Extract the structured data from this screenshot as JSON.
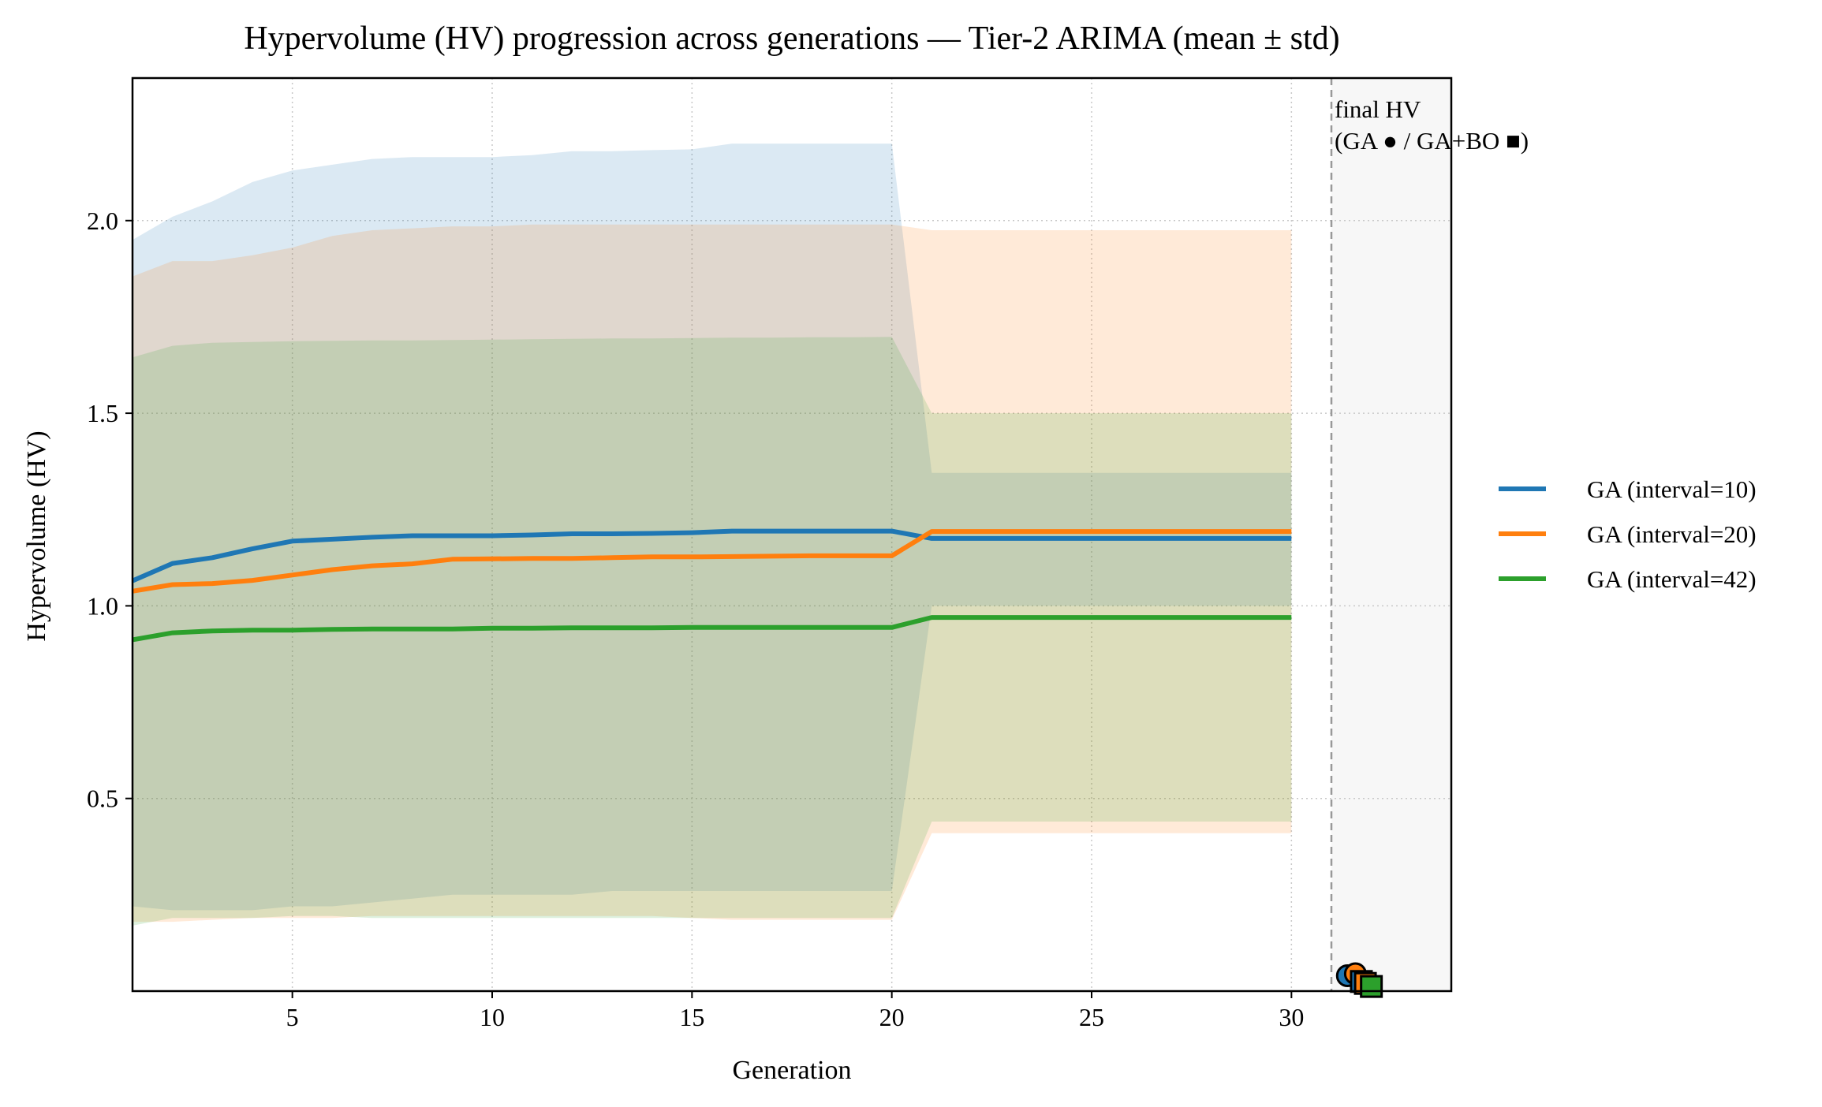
{
  "chart_data": {
    "type": "line",
    "title": "Hypervolume (HV) progression across generations — Tier-2 ARIMA (mean ± std)",
    "xlabel": "Generation",
    "ylabel": "Hypervolume (HV)",
    "xlim": [
      1,
      34
    ],
    "ylim": [
      0.0,
      2.37
    ],
    "xticks": [
      5,
      10,
      15,
      20,
      25,
      30
    ],
    "yticks": [
      0.5,
      1.0,
      1.5,
      2.0
    ],
    "xtick_labels": [
      "5",
      "10",
      "15",
      "20",
      "25",
      "30"
    ],
    "ytick_labels": [
      "0.5",
      "1.0",
      "1.5",
      "2.0"
    ],
    "grid": true,
    "legend_position": "right, outside plot",
    "x": [
      1,
      2,
      3,
      4,
      5,
      6,
      7,
      8,
      9,
      10,
      11,
      12,
      13,
      14,
      15,
      16,
      17,
      18,
      19,
      20,
      21,
      22,
      23,
      24,
      25,
      26,
      27,
      28,
      29,
      30
    ],
    "series": [
      {
        "name": "GA (interval=10)",
        "color": "#1f77b4",
        "mean": [
          1.065,
          1.11,
          1.125,
          1.148,
          1.168,
          1.173,
          1.178,
          1.182,
          1.182,
          1.182,
          1.184,
          1.187,
          1.187,
          1.188,
          1.19,
          1.194,
          1.194,
          1.194,
          1.194,
          1.194,
          1.175,
          1.175,
          1.175,
          1.175,
          1.175,
          1.175,
          1.175,
          1.175,
          1.175,
          1.175
        ],
        "upper": [
          1.95,
          2.01,
          2.05,
          2.1,
          2.13,
          2.145,
          2.16,
          2.165,
          2.165,
          2.165,
          2.17,
          2.18,
          2.18,
          2.183,
          2.185,
          2.2,
          2.2,
          2.2,
          2.2,
          2.2,
          1.345,
          1.345,
          1.345,
          1.345,
          1.345,
          1.345,
          1.345,
          1.345,
          1.345,
          1.345
        ],
        "lower": [
          0.22,
          0.21,
          0.21,
          0.21,
          0.22,
          0.22,
          0.23,
          0.24,
          0.25,
          0.25,
          0.25,
          0.25,
          0.26,
          0.26,
          0.26,
          0.26,
          0.26,
          0.26,
          0.26,
          0.26,
          1.0,
          1.0,
          1.0,
          1.0,
          1.0,
          1.0,
          1.0,
          1.0,
          1.0,
          1.0
        ]
      },
      {
        "name": "GA (interval=20)",
        "color": "#ff7f0e",
        "mean": [
          1.038,
          1.055,
          1.058,
          1.066,
          1.08,
          1.094,
          1.104,
          1.109,
          1.121,
          1.122,
          1.123,
          1.123,
          1.125,
          1.127,
          1.127,
          1.128,
          1.129,
          1.13,
          1.13,
          1.13,
          1.193,
          1.193,
          1.193,
          1.193,
          1.193,
          1.193,
          1.193,
          1.193,
          1.193,
          1.193
        ],
        "upper": [
          1.855,
          1.895,
          1.895,
          1.91,
          1.93,
          1.96,
          1.975,
          1.98,
          1.985,
          1.985,
          1.99,
          1.99,
          1.99,
          1.99,
          1.99,
          1.99,
          1.99,
          1.99,
          1.99,
          1.99,
          1.975,
          1.975,
          1.975,
          1.975,
          1.975,
          1.975,
          1.975,
          1.975,
          1.975,
          1.975
        ],
        "lower": [
          0.18,
          0.18,
          0.185,
          0.19,
          0.19,
          0.19,
          0.195,
          0.195,
          0.195,
          0.195,
          0.195,
          0.195,
          0.195,
          0.195,
          0.19,
          0.185,
          0.185,
          0.185,
          0.185,
          0.185,
          0.41,
          0.41,
          0.41,
          0.41,
          0.41,
          0.41,
          0.41,
          0.41,
          0.41,
          0.41
        ]
      },
      {
        "name": "GA (interval=42)",
        "color": "#2ca02c",
        "mean": [
          0.912,
          0.93,
          0.935,
          0.937,
          0.937,
          0.939,
          0.94,
          0.94,
          0.94,
          0.942,
          0.942,
          0.943,
          0.943,
          0.943,
          0.944,
          0.944,
          0.944,
          0.944,
          0.944,
          0.944,
          0.97,
          0.97,
          0.97,
          0.97,
          0.97,
          0.97,
          0.97,
          0.97,
          0.97,
          0.97
        ],
        "upper": [
          1.645,
          1.675,
          1.683,
          1.685,
          1.687,
          1.688,
          1.689,
          1.689,
          1.69,
          1.691,
          1.692,
          1.693,
          1.694,
          1.694,
          1.695,
          1.696,
          1.696,
          1.697,
          1.697,
          1.698,
          1.5,
          1.5,
          1.5,
          1.5,
          1.5,
          1.5,
          1.5,
          1.5,
          1.5,
          1.5
        ],
        "lower": [
          0.17,
          0.19,
          0.19,
          0.19,
          0.195,
          0.195,
          0.19,
          0.19,
          0.19,
          0.19,
          0.19,
          0.19,
          0.19,
          0.19,
          0.19,
          0.19,
          0.19,
          0.19,
          0.19,
          0.19,
          0.44,
          0.44,
          0.44,
          0.44,
          0.44,
          0.44,
          0.44,
          0.44,
          0.44,
          0.44
        ]
      }
    ],
    "final_hv_annotation": {
      "text_line1": "final HV",
      "text_line2": "(GA ● / GA+BO ■)",
      "divider_x": 31,
      "markers": [
        {
          "series": "GA (interval=10)",
          "kind": "GA",
          "shape": "circle",
          "x": 31.4,
          "y": 0.04,
          "color": "#1f77b4"
        },
        {
          "series": "GA (interval=20)",
          "kind": "GA",
          "shape": "circle",
          "x": 31.6,
          "y": 0.045,
          "color": "#ff7f0e"
        },
        {
          "series": "GA (interval=10)",
          "kind": "GA+BO",
          "shape": "square",
          "x": 31.75,
          "y": 0.025,
          "color": "#1f77b4"
        },
        {
          "series": "GA (interval=20)",
          "kind": "GA+BO",
          "shape": "square",
          "x": 31.85,
          "y": 0.02,
          "color": "#ff7f0e"
        },
        {
          "series": "GA (interval=42)",
          "kind": "GA+BO",
          "shape": "square",
          "x": 32.0,
          "y": 0.012,
          "color": "#2ca02c"
        }
      ]
    }
  }
}
